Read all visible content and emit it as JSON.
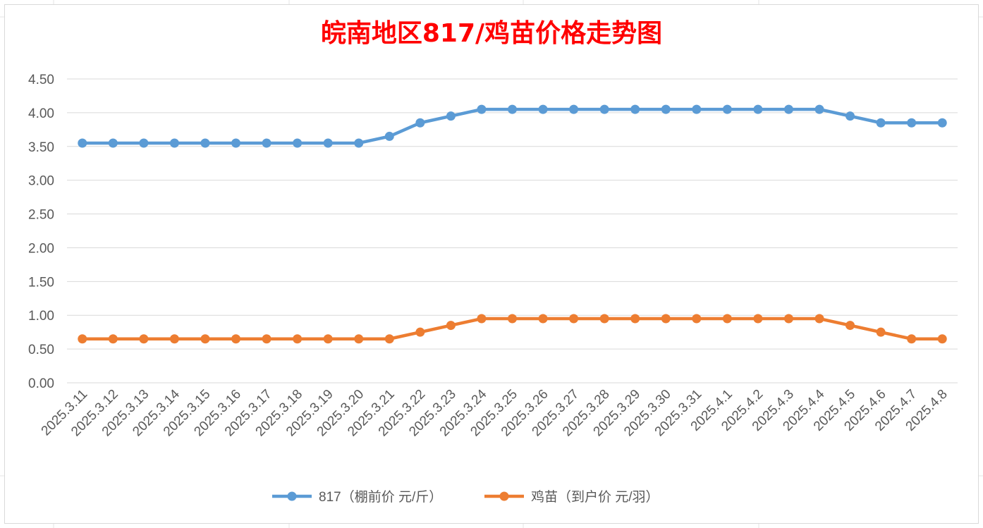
{
  "chart_data": {
    "type": "line",
    "title": "皖南地区817/鸡苗价格走势图",
    "title_color": "#ff0000",
    "xlabel": "",
    "ylabel": "",
    "ylim": [
      0,
      4.5
    ],
    "yticks": [
      "0.00",
      "0.50",
      "1.00",
      "1.50",
      "2.00",
      "2.50",
      "3.00",
      "3.50",
      "4.00",
      "4.50"
    ],
    "grid": true,
    "legend_position": "bottom",
    "categories": [
      "2025.3.11",
      "2025.3.12",
      "2025.3.13",
      "2025.3.14",
      "2025.3.15",
      "2025.3.16",
      "2025.3.17",
      "2025.3.18",
      "2025.3.19",
      "2025.3.20",
      "2025.3.21",
      "2025.3.22",
      "2025.3.23",
      "2025.3.24",
      "2025.3.25",
      "2025.3.26",
      "2025.3.27",
      "2025.3.28",
      "2025.3.29",
      "2025.3.30",
      "2025.3.31",
      "2025.4.1",
      "2025.4.2",
      "2025.4.3",
      "2025.4.4",
      "2025.4.5",
      "2025.4.6",
      "2025.4.7",
      "2025.4.8"
    ],
    "series": [
      {
        "name": "817（棚前价 元/斤）",
        "color": "#5b9bd5",
        "values": [
          3.55,
          3.55,
          3.55,
          3.55,
          3.55,
          3.55,
          3.55,
          3.55,
          3.55,
          3.55,
          3.65,
          3.85,
          3.95,
          4.05,
          4.05,
          4.05,
          4.05,
          4.05,
          4.05,
          4.05,
          4.05,
          4.05,
          4.05,
          4.05,
          4.05,
          3.95,
          3.85,
          3.85,
          3.85
        ]
      },
      {
        "name": "鸡苗（到户价 元/羽）",
        "color": "#ed7d31",
        "values": [
          0.65,
          0.65,
          0.65,
          0.65,
          0.65,
          0.65,
          0.65,
          0.65,
          0.65,
          0.65,
          0.65,
          0.75,
          0.85,
          0.95,
          0.95,
          0.95,
          0.95,
          0.95,
          0.95,
          0.95,
          0.95,
          0.95,
          0.95,
          0.95,
          0.95,
          0.85,
          0.75,
          0.65,
          0.65
        ]
      }
    ]
  }
}
